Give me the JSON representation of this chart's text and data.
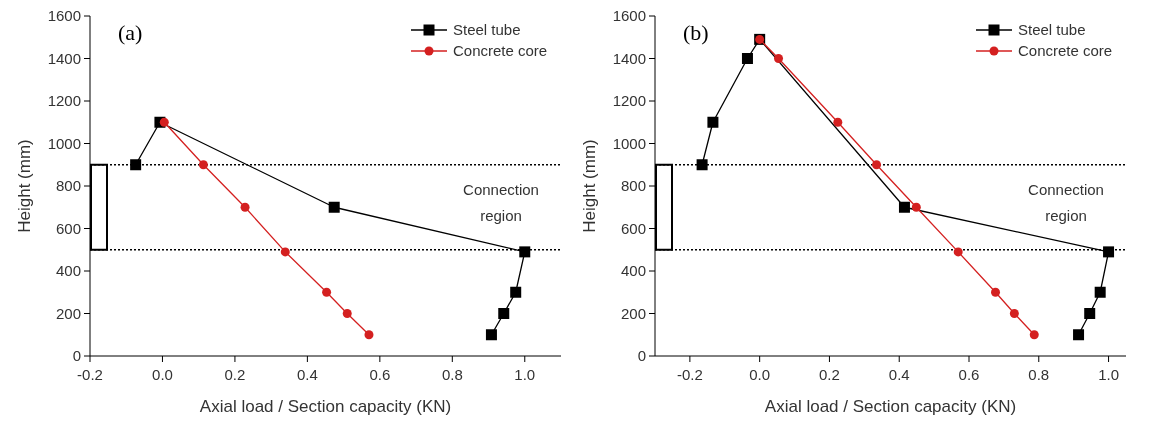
{
  "chart_data": [
    {
      "type": "line",
      "title": "(a)",
      "xlabel": "Axial load / Section capacity (KN)",
      "ylabel": "Height (mm)",
      "xlim": [
        -0.2,
        1.1
      ],
      "xticks": [
        {
          "value": -0.2,
          "label": "-0.2"
        },
        {
          "value": 0,
          "label": "0.0"
        },
        {
          "value": 0.2,
          "label": "0.2"
        },
        {
          "value": 0.4,
          "label": "0.4"
        },
        {
          "value": 0.6,
          "label": "0.6"
        },
        {
          "value": 0.8,
          "label": "0.8"
        },
        {
          "value": 1,
          "label": "1.0"
        }
      ],
      "ylim": [
        0,
        1600
      ],
      "yticks": [
        0,
        200,
        400,
        600,
        800,
        1000,
        1200,
        1400,
        1600
      ],
      "series": [
        {
          "name": "Steel tube",
          "color": "#000000",
          "marker": "square",
          "x": [
            -0.074,
            -0.007,
            0.474,
            1.0,
            0.975,
            0.942,
            0.908
          ],
          "values": [
            900,
            1100,
            700,
            490,
            300,
            200,
            100
          ]
        },
        {
          "name": "Concrete core",
          "color": "#d42020",
          "marker": "circle",
          "x": [
            0.005,
            0.113,
            0.228,
            0.339,
            0.453,
            0.51,
            0.57
          ],
          "values": [
            1100,
            900,
            700,
            490,
            300,
            200,
            100
          ]
        }
      ],
      "ref_lines": [
        {
          "axis": "y",
          "value": 900,
          "line_style": "dotted"
        },
        {
          "axis": "y",
          "value": 500,
          "line_style": "dotted"
        }
      ],
      "annotations": [
        "Connection region"
      ],
      "legend": "top right",
      "line_style": "solid"
    },
    {
      "type": "line",
      "title": "(b)",
      "xlabel": "Axial load / Section capacity (KN)",
      "ylabel": "Height (mm)",
      "xlim": [
        -0.3,
        1.05
      ],
      "xticks": [
        {
          "value": -0.2,
          "label": "-0.2"
        },
        {
          "value": 0,
          "label": "0.0"
        },
        {
          "value": 0.2,
          "label": "0.2"
        },
        {
          "value": 0.4,
          "label": "0.4"
        },
        {
          "value": 0.6,
          "label": "0.6"
        },
        {
          "value": 0.8,
          "label": "0.8"
        },
        {
          "value": 1,
          "label": "1.0"
        }
      ],
      "ylim": [
        0,
        1600
      ],
      "yticks": [
        0,
        200,
        400,
        600,
        800,
        1000,
        1200,
        1400,
        1600
      ],
      "series": [
        {
          "name": "Steel tube",
          "color": "#000000",
          "marker": "square",
          "x": [
            -0.165,
            -0.134,
            -0.035,
            0.0,
            0.415,
            1.0,
            0.976,
            0.946,
            0.914
          ],
          "values": [
            900,
            1100,
            1400,
            1490,
            700,
            490,
            300,
            200,
            100
          ]
        },
        {
          "name": "Concrete core",
          "color": "#d42020",
          "marker": "circle",
          "x": [
            0.0,
            0.054,
            0.224,
            0.335,
            0.449,
            0.569,
            0.676,
            0.73,
            0.787
          ],
          "values": [
            1490,
            1400,
            1100,
            900,
            700,
            490,
            300,
            200,
            100
          ]
        }
      ],
      "ref_lines": [
        {
          "axis": "y",
          "value": 900,
          "line_style": "dotted"
        },
        {
          "axis": "y",
          "value": 500,
          "line_style": "dotted"
        }
      ],
      "annotations": [
        "Connection region"
      ],
      "legend": "top right",
      "line_style": "solid"
    }
  ]
}
